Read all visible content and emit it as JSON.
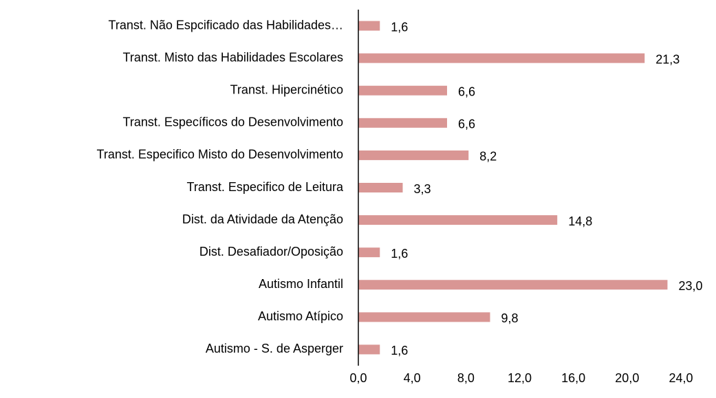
{
  "chart_data": {
    "type": "barh",
    "categories": [
      "Transt. Não Espcificado das Habilidades…",
      "Transt. Misto das Habilidades Escolares",
      "Transt. Hipercinético",
      "Transt. Específicos do Desenvolvimento",
      "Transt. Especifico Misto do Desenvolvimento",
      "Transt. Especifico de Leitura",
      "Dist. da Atividade da Atenção",
      "Dist. Desafiador/Oposição",
      "Autismo Infantil",
      "Autismo Atípico",
      "Autismo - S. de Asperger"
    ],
    "values": [
      1.6,
      21.3,
      6.6,
      6.6,
      8.2,
      3.3,
      14.8,
      1.6,
      23.0,
      9.8,
      1.6
    ],
    "value_labels": [
      "1,6",
      "21,3",
      "6,6",
      "6,6",
      "8,2",
      "3,3",
      "14,8",
      "1,6",
      "23,0",
      "9,8",
      "1,6"
    ],
    "color": "#d99694",
    "xlim": [
      0,
      24
    ],
    "xticks": [
      {
        "value": 0,
        "label": "0,0"
      },
      {
        "value": 4,
        "label": "4,0"
      },
      {
        "value": 8,
        "label": "8,0"
      },
      {
        "value": 12,
        "label": "12,0"
      },
      {
        "value": 16,
        "label": "16,0"
      },
      {
        "value": 20,
        "label": "20,0"
      },
      {
        "value": 24,
        "label": "24,0"
      }
    ],
    "grid": false
  }
}
